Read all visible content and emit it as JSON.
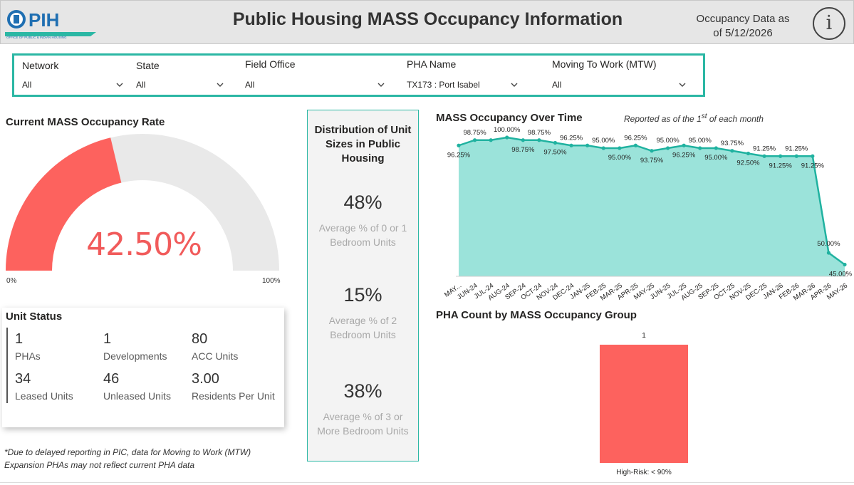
{
  "header": {
    "logo_text": "PIH",
    "logo_subtext": "OFFICE OF PUBLIC & INDIAN HOUSING",
    "title": "Public Housing MASS Occupancy Information",
    "asof_line1": "Occupancy Data as",
    "asof_line2": "of 5/12/2026",
    "info_symbol": "i"
  },
  "filters": [
    {
      "label": "Network",
      "value": "All"
    },
    {
      "label": "State",
      "value": "All"
    },
    {
      "label": "Field Office",
      "value": "All"
    },
    {
      "label": "PHA Name",
      "value": "TX173 : Port Isabel"
    },
    {
      "label": "Moving To Work (MTW)",
      "value": "All"
    }
  ],
  "gauge": {
    "title": "Current MASS Occupancy Rate",
    "value_label": "42.50%",
    "value": 42.5,
    "min_label": "0%",
    "max_label": "100%",
    "min": 0,
    "max": 100,
    "fill_color": "#fd625e",
    "track_color": "#e9e9e9"
  },
  "unit_status": {
    "title": "Unit Status",
    "kpis": [
      {
        "value": "1",
        "label": "PHAs"
      },
      {
        "value": "1",
        "label": "Developments"
      },
      {
        "value": "80",
        "label": "ACC Units"
      },
      {
        "value": "34",
        "label": "Leased Units"
      },
      {
        "value": "46",
        "label": "Unleased Units"
      },
      {
        "value": "3.00",
        "label": "Residents Per Unit"
      }
    ]
  },
  "footnote": {
    "line1": "*Due to delayed reporting in PIC, data for Moving to Work (MTW)",
    "line2": "Expansion PHAs may not reflect current PHA data"
  },
  "distribution": {
    "title_lines": [
      "Distribution of Unit",
      "Sizes in Public",
      "Housing"
    ],
    "items": [
      {
        "value": "48%",
        "label_lines": [
          "Average % of 0 or 1",
          "Bedroom Units"
        ]
      },
      {
        "value": "15%",
        "label_lines": [
          "Average % of 2",
          "Bedroom Units"
        ]
      },
      {
        "value": "38%",
        "label_lines": [
          "Average % of 3 or",
          "More Bedroom Units"
        ]
      }
    ]
  },
  "line_chart": {
    "title": "MASS Occupancy Over Time",
    "subtitle_pre": "Reported as of the 1",
    "subtitle_sup": "st",
    "subtitle_post": " of each month"
  },
  "bar_chart": {
    "title": "PHA Count by MASS Occupancy Group"
  },
  "chart_data": [
    {
      "type": "area",
      "title": "MASS Occupancy Over Time",
      "categories": [
        "MAY...",
        "JUN-24",
        "JUL-24",
        "AUG-24",
        "SEP-24",
        "OCT-24",
        "NOV-24",
        "DEC-24",
        "JAN-25",
        "FEB-25",
        "MAR-25",
        "APR-25",
        "MAY-25",
        "JUN-25",
        "JUL-25",
        "AUG-25",
        "SEP-25",
        "OCT-25",
        "NOV-25",
        "DEC-25",
        "JAN-26",
        "FEB-26",
        "MAR-26",
        "APR-26",
        "MAY-26"
      ],
      "values": [
        96.25,
        98.75,
        98.75,
        100.0,
        98.75,
        98.75,
        97.5,
        96.25,
        96.25,
        95.0,
        95.0,
        96.25,
        93.75,
        95.0,
        96.25,
        95.0,
        95.0,
        93.75,
        92.5,
        91.25,
        91.25,
        91.25,
        91.25,
        50.0,
        45.0
      ],
      "labels": [
        "96.25%",
        "98.75%",
        "",
        "100.00%",
        "98.75%",
        "98.75%",
        "97.50%",
        "96.25%",
        "",
        "95.00%",
        "95.00%",
        "96.25%",
        "93.75%",
        "95.00%",
        "96.25%",
        "95.00%",
        "95.00%",
        "93.75%",
        "92.50%",
        "91.25%",
        "91.25%",
        "91.25%",
        "91.25%",
        "50.00%",
        "45.00%"
      ],
      "line_color": "#20b2a0",
      "fill_color": "#9be3da",
      "ylim": [
        40,
        100
      ]
    },
    {
      "type": "bar",
      "title": "PHA Count by MASS Occupancy Group",
      "categories": [
        "High-Risk: < 90%"
      ],
      "values": [
        1
      ],
      "value_labels": [
        "1"
      ],
      "color": "#fd625e"
    }
  ]
}
